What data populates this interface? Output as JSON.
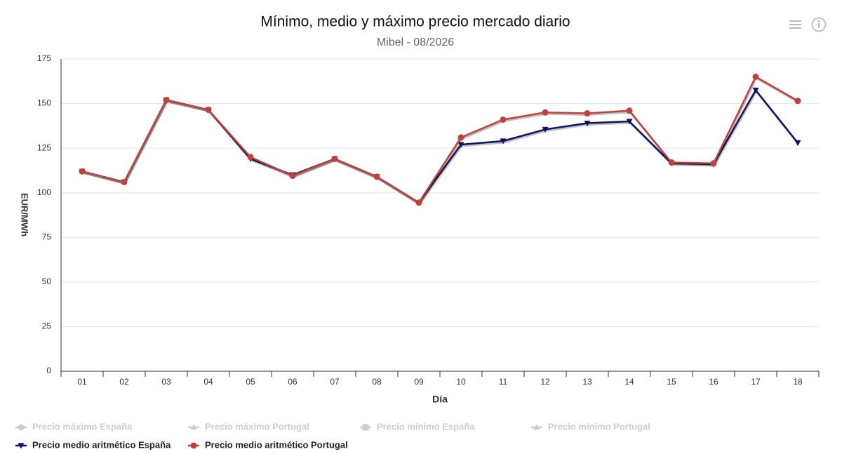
{
  "chart_data": {
    "type": "line",
    "title": "Mínimo, medio y máximo precio mercado diario",
    "subtitle": "Mibel - 08/2026",
    "x_label": "Día",
    "y_label": "EUR/MWh",
    "categories": [
      "01",
      "02",
      "03",
      "04",
      "05",
      "06",
      "07",
      "08",
      "09",
      "10",
      "11",
      "12",
      "13",
      "14",
      "15",
      "16",
      "17",
      "18"
    ],
    "ylim": [
      0,
      175
    ],
    "yticks": [
      0,
      25,
      50,
      75,
      100,
      125,
      150,
      175
    ],
    "grid": true,
    "hidden_series": [
      {
        "name": "Precio máximo España",
        "marker": "circle"
      },
      {
        "name": "Precio máximo Portugal",
        "marker": "triangle-up"
      },
      {
        "name": "Precio mínimo España",
        "marker": "square"
      },
      {
        "name": "Precio mínimo Portugal",
        "marker": "triangle-up"
      }
    ],
    "series": [
      {
        "name": "Precio medio aritmético España",
        "color": "#0d1160",
        "marker": "triangle-down",
        "values": [
          112,
          106,
          152,
          146.5,
          119,
          110,
          119,
          109,
          94.5,
          127,
          129,
          135.5,
          139,
          140,
          116.5,
          116,
          157.5,
          128
        ]
      },
      {
        "name": "Precio medio aritmético Portugal",
        "color": "#c0413b",
        "marker": "circle",
        "values": [
          112,
          106,
          152,
          146.5,
          120,
          109.5,
          119,
          109,
          94.5,
          131,
          141,
          145,
          144.5,
          146,
          117,
          116.5,
          165,
          151.5
        ]
      }
    ]
  }
}
